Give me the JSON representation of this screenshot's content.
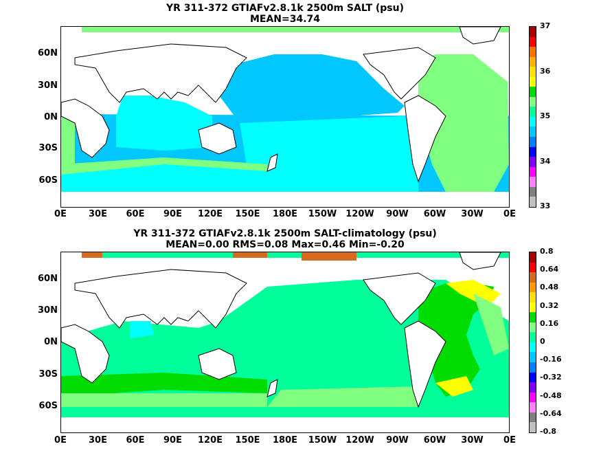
{
  "panels": [
    {
      "title_line1": "YR 311-372 GTIAFv2.8.1k 2500m SALT (psu)",
      "title_line2": "MEAN=34.74",
      "ocean_fill": "#00c8ff",
      "colorbar": {
        "colors": [
          "#aa0000",
          "#ff0000",
          "#ff7000",
          "#ffb000",
          "#ffe000",
          "#ffff00",
          "#00dc00",
          "#80ff80",
          "#00ff9a",
          "#00ffff",
          "#00c8ff",
          "#0080ff",
          "#0000ff",
          "#8000ff",
          "#ff00ff",
          "#ff80ff",
          "#808080",
          "#c0c0c0"
        ],
        "tick_labels": [
          "37",
          "36",
          "35",
          "34",
          "33"
        ]
      }
    },
    {
      "title_line1": "YR 311-372 GTIAFv2.8.1k 2500m SALT-climatology (psu)",
      "title_line2": "MEAN=0.00   RMS=0.08   Max=0.46   Min=-0.20",
      "ocean_fill": "#00ff9a",
      "colorbar": {
        "colors": [
          "#aa0000",
          "#ff0000",
          "#d86a20",
          "#ff9900",
          "#ffe000",
          "#ffff00",
          "#00dc00",
          "#80ff80",
          "#00ff9a",
          "#00ffff",
          "#00c8ff",
          "#0080ff",
          "#0000ff",
          "#8000ff",
          "#ff00ff",
          "#ff80ff",
          "#808080",
          "#c0c0c0"
        ],
        "tick_labels": [
          "0.8",
          "0.64",
          "0.48",
          "0.32",
          "0.16",
          "0",
          "-0.16",
          "-0.32",
          "-0.48",
          "-0.64",
          "-0.8"
        ]
      }
    }
  ],
  "y_axis_labels": [
    "60N",
    "30N",
    "0N",
    "30S",
    "60S"
  ],
  "x_axis_labels": [
    "0E",
    "30E",
    "60E",
    "90E",
    "120E",
    "150E",
    "180E",
    "150W",
    "120W",
    "90W",
    "60W",
    "30W",
    "0E"
  ]
}
